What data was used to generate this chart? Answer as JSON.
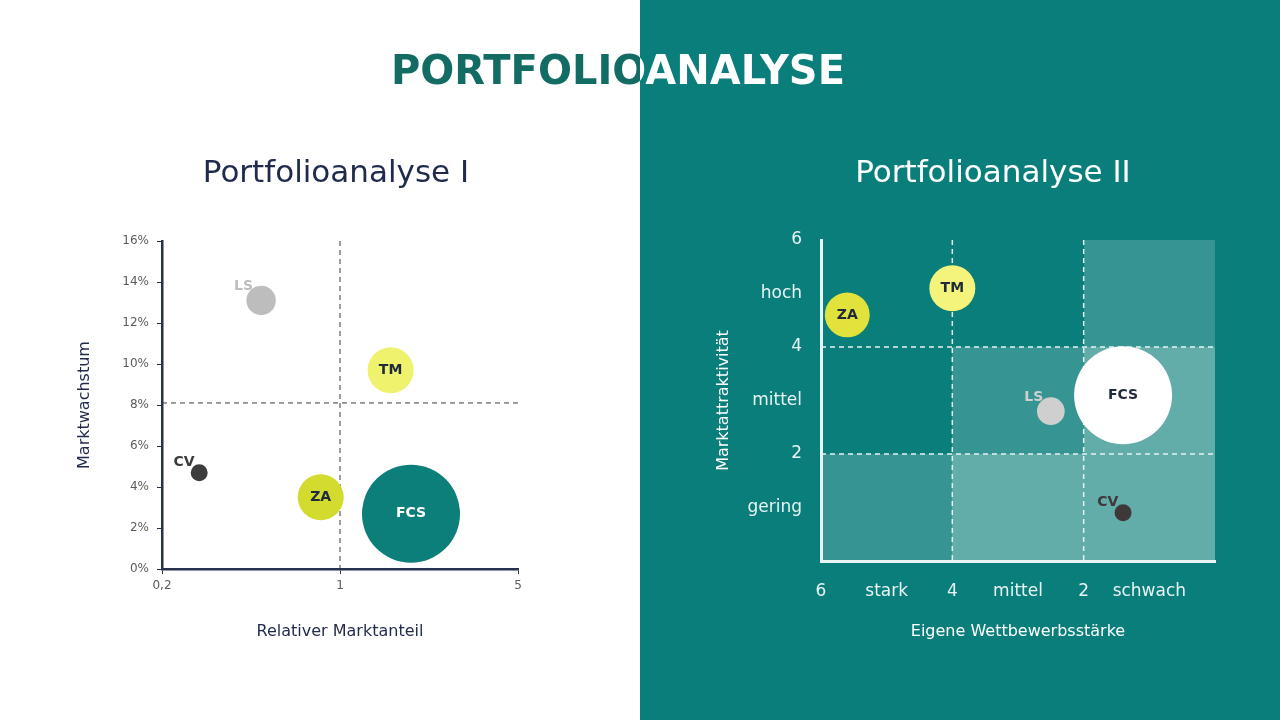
{
  "chart_data": [
    {
      "type": "bubble",
      "title": "PORTFOLIOANALYSE",
      "subtitle": "Portfolioanalyse I",
      "xlabel": "Relativer Marktanteil",
      "ylabel": "Marktwachstum",
      "log": "x",
      "xlim": [
        0.2,
        5
      ],
      "xticks": [
        {
          "value": 0.2,
          "label": "0,2"
        },
        1,
        5
      ],
      "ylim": [
        0,
        16
      ],
      "yticks": [
        {
          "value": 0,
          "label": "0%"
        },
        {
          "value": 2,
          "label": "2%"
        },
        {
          "value": 4,
          "label": "4%"
        },
        {
          "value": 6,
          "label": "6%"
        },
        {
          "value": 8,
          "label": "8%"
        },
        {
          "value": 10,
          "label": "10%"
        },
        {
          "value": 12,
          "label": "12%"
        },
        {
          "value": 14,
          "label": "14%"
        },
        {
          "value": 16,
          "label": "16%"
        }
      ],
      "ref_lines": [
        {
          "axis": "x",
          "value": 1,
          "color": "#3a3a3a",
          "line_style": "dashed"
        },
        {
          "axis": "y",
          "value": 8.1,
          "color": "#3a3a3a",
          "line_style": "dashed"
        }
      ],
      "series": [
        {
          "name": "LS",
          "color": "#bdbdbd",
          "x": [
            0.49
          ],
          "values": [
            13.1
          ],
          "sizes": [
            0.09
          ]
        },
        {
          "name": "TM",
          "color": "#eef26c",
          "x": [
            1.58
          ],
          "values": [
            9.7
          ],
          "sizes": [
            0.22
          ]
        },
        {
          "name": "CV",
          "color": "#3c3c3c",
          "x": [
            0.28
          ],
          "values": [
            4.7
          ],
          "sizes": [
            0.03
          ]
        },
        {
          "name": "ZA",
          "color": "#d3dc2e",
          "x": [
            0.84
          ],
          "values": [
            3.5
          ],
          "sizes": [
            0.22
          ]
        },
        {
          "name": "FCS",
          "color": "#0c7f7a",
          "x": [
            1.9
          ],
          "values": [
            2.7
          ],
          "sizes": [
            1
          ]
        }
      ]
    },
    {
      "type": "bubble",
      "subtitle": "Portfolioanalyse II",
      "xlabel": "Eigene Wettbewerbsstärke",
      "ylabel": "Marktattraktivität",
      "xlim": [
        6,
        0
      ],
      "xticks": [
        6,
        {
          "value": 5,
          "label": "stark"
        },
        4,
        {
          "value": 3,
          "label": "mittel"
        },
        2,
        {
          "value": 1,
          "label": "schwach"
        }
      ],
      "ylim": [
        0,
        6
      ],
      "yticks": [
        {
          "value": 1,
          "label": "gering"
        },
        2,
        {
          "value": 3,
          "label": "mittel"
        },
        4,
        {
          "value": 5,
          "label": "hoch"
        },
        6
      ],
      "ref_lines": [
        {
          "axis": "x",
          "value": 4,
          "color": "#e6f4f3",
          "line_style": "dashed"
        },
        {
          "axis": "x",
          "value": 2,
          "color": "#e6f4f3",
          "line_style": "dashed"
        },
        {
          "axis": "y",
          "value": 4,
          "color": "#e6f4f3",
          "line_style": "dashed"
        },
        {
          "axis": "y",
          "value": 2,
          "color": "#e6f4f3",
          "line_style": "dashed"
        }
      ],
      "series": [
        {
          "name": "ZA",
          "color": "#e2e23c",
          "x": [
            5.6
          ],
          "values": [
            4.6
          ],
          "sizes": [
            0.21
          ]
        },
        {
          "name": "TM",
          "color": "#f4f47c",
          "x": [
            4
          ],
          "values": [
            5.1
          ],
          "sizes": [
            0.22
          ]
        },
        {
          "name": "LS",
          "color": "#cfcfcf",
          "x": [
            2.5
          ],
          "values": [
            2.8
          ],
          "sizes": [
            0.08
          ]
        },
        {
          "name": "FCS",
          "color": "#ffffff",
          "x": [
            1.4
          ],
          "values": [
            3.1
          ],
          "sizes": [
            1
          ]
        },
        {
          "name": "CV",
          "color": "#3e3838",
          "x": [
            1.4
          ],
          "values": [
            0.9
          ],
          "sizes": [
            0.03
          ]
        }
      ]
    }
  ]
}
